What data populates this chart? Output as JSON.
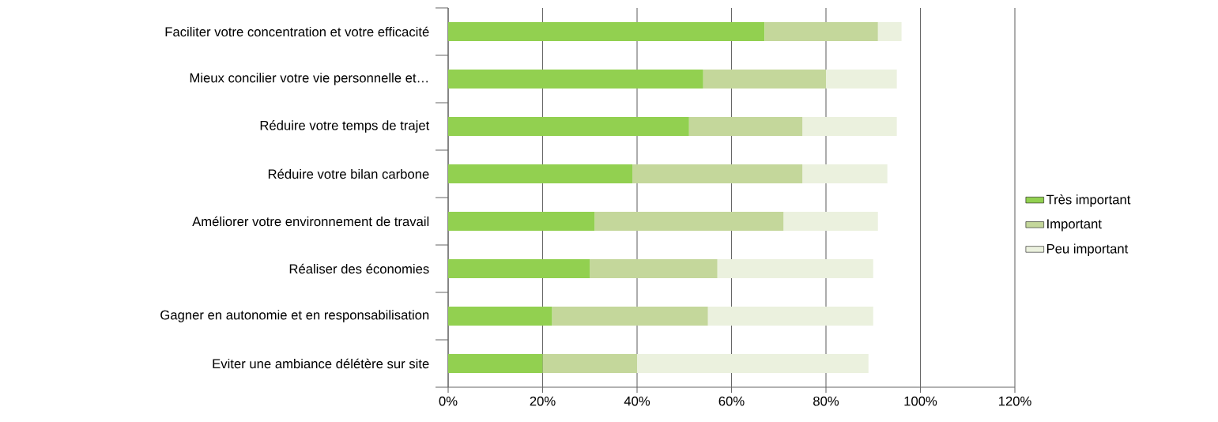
{
  "chart_data": {
    "type": "bar",
    "orientation": "horizontal",
    "stacked": true,
    "categories": [
      "Faciliter votre concentration et votre efficacité",
      "Mieux concilier votre vie personnelle et…",
      "Réduire votre temps de trajet",
      "Réduire votre bilan carbone",
      "Améliorer votre environnement de travail",
      "Réaliser des économies",
      "Gagner en autonomie et en responsabilisation",
      "Eviter une ambiance délétère sur site"
    ],
    "series": [
      {
        "name": "Très important",
        "color": "#92d050",
        "values": [
          67,
          54,
          51,
          39,
          31,
          30,
          22,
          20
        ]
      },
      {
        "name": "Important",
        "color": "#c4d79b",
        "values": [
          24,
          26,
          24,
          36,
          40,
          27,
          33,
          20
        ]
      },
      {
        "name": "Peu important",
        "color": "#ebf1de",
        "values": [
          5,
          15,
          20,
          18,
          20,
          33,
          35,
          49
        ]
      }
    ],
    "xlim": [
      0,
      120
    ],
    "xticks": [
      {
        "value": 0,
        "label": "0%"
      },
      {
        "value": 20,
        "label": "20%"
      },
      {
        "value": 40,
        "label": "40%"
      },
      {
        "value": 60,
        "label": "60%"
      },
      {
        "value": 80,
        "label": "80%"
      },
      {
        "value": 100,
        "label": "100%"
      },
      {
        "value": 120,
        "label": "120%"
      }
    ],
    "grid": "x",
    "legend": "right"
  }
}
